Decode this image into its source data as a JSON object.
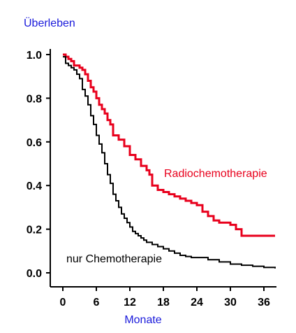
{
  "chart_data": {
    "type": "line",
    "ylabel": "Überleben",
    "xlabel": "Monate",
    "xlim": [
      -1,
      38
    ],
    "ylim": [
      -0.06,
      1.04
    ],
    "x_ticks": [
      0,
      6,
      12,
      18,
      24,
      30,
      36
    ],
    "x_tick_labels": [
      "0",
      "6",
      "12",
      "18",
      "24",
      "30",
      "36"
    ],
    "y_ticks": [
      0.0,
      0.2,
      0.4,
      0.6,
      0.8,
      1.0
    ],
    "y_tick_labels": [
      "0.0",
      "0.2",
      "0.4",
      "0.6",
      "0.8",
      "1.0"
    ],
    "grid": false,
    "step": true,
    "colors": {
      "radio": "#e8001c",
      "chemo": "#000000",
      "axis_text": "#1a1adb"
    },
    "series": [
      {
        "name": "Radiochemotherapie",
        "color": "#e8001c",
        "x": [
          0,
          0.5,
          1,
          1.5,
          2,
          2.5,
          3,
          3.5,
          4,
          4.5,
          5,
          5.5,
          6,
          6.5,
          7,
          7.5,
          8,
          8.5,
          9,
          10,
          11,
          12,
          13,
          14,
          15,
          15.5,
          16,
          17,
          18,
          19,
          20,
          21,
          22,
          23,
          24,
          25,
          26,
          27,
          28,
          29,
          30,
          31,
          32,
          33,
          34,
          35,
          36,
          37,
          38
        ],
        "y": [
          1.0,
          0.99,
          0.98,
          0.97,
          0.95,
          0.95,
          0.94,
          0.93,
          0.91,
          0.88,
          0.85,
          0.83,
          0.8,
          0.77,
          0.75,
          0.73,
          0.7,
          0.68,
          0.63,
          0.61,
          0.58,
          0.54,
          0.52,
          0.49,
          0.47,
          0.45,
          0.4,
          0.38,
          0.37,
          0.36,
          0.35,
          0.34,
          0.33,
          0.32,
          0.31,
          0.28,
          0.26,
          0.24,
          0.23,
          0.23,
          0.22,
          0.2,
          0.17,
          0.17,
          0.17,
          0.17,
          0.17,
          0.17,
          0.17
        ]
      },
      {
        "name": "nur Chemotherapie",
        "color": "#000000",
        "x": [
          0,
          0.5,
          1,
          1.5,
          2,
          2.5,
          3,
          3.5,
          4,
          4.5,
          5,
          5.5,
          6,
          6.5,
          7,
          7.5,
          8,
          8.5,
          9,
          9.5,
          10,
          10.5,
          11,
          11.5,
          12,
          12.5,
          13,
          13.5,
          14,
          14.5,
          15,
          16,
          17,
          18,
          19,
          20,
          21,
          22,
          23,
          24,
          26,
          28,
          30,
          32,
          34,
          36,
          38
        ],
        "y": [
          0.99,
          0.96,
          0.95,
          0.94,
          0.93,
          0.91,
          0.89,
          0.84,
          0.81,
          0.77,
          0.72,
          0.68,
          0.63,
          0.59,
          0.55,
          0.5,
          0.45,
          0.41,
          0.36,
          0.33,
          0.3,
          0.27,
          0.25,
          0.23,
          0.21,
          0.19,
          0.18,
          0.17,
          0.16,
          0.15,
          0.14,
          0.13,
          0.12,
          0.11,
          0.1,
          0.09,
          0.08,
          0.075,
          0.07,
          0.07,
          0.06,
          0.05,
          0.04,
          0.035,
          0.03,
          0.025,
          0.02
        ]
      }
    ]
  }
}
